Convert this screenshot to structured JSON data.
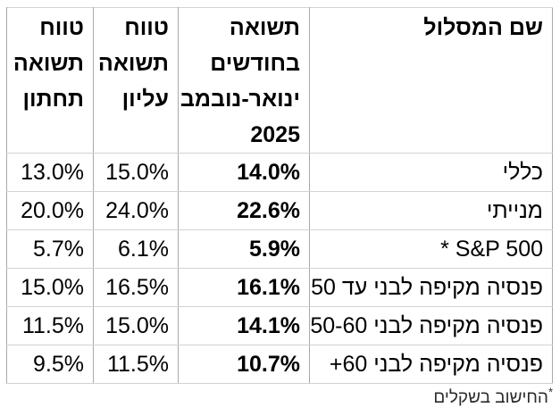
{
  "chart_data": {
    "type": "table",
    "direction": "rtl",
    "columns": [
      "שם המסלול",
      "תשואה בחודשים ינואר-נובמבר 2025",
      "טווח תשואה עליון",
      "טווח תשואה תחתון"
    ],
    "rows": [
      [
        "כללי",
        "14.0%",
        "15.0%",
        "13.0%"
      ],
      [
        "מנייתי",
        "22.6%",
        "24.0%",
        "20.0%"
      ],
      [
        "S&P 500 *",
        "5.9%",
        "6.1%",
        "5.7%"
      ],
      [
        "פנסיה מקיפה לבני עד 50",
        "16.1%",
        "16.5%",
        "15.0%"
      ],
      [
        "פנסיה מקיפה לבני 50-60",
        "14.1%",
        "15.0%",
        "11.5%"
      ],
      [
        "פנסיה מקיפה לבני 60+",
        "10.7%",
        "11.5%",
        "9.5%"
      ]
    ],
    "footnote": "*החישוב בשקלים",
    "emphasis": "עמודת התשואה בחודשים ינואר-נובמבר 2025 מודגשת"
  },
  "table": {
    "headers": {
      "name": "שם המסלול",
      "return": "תשואה\nבחודשים\nינואר-נובמבר\n2025",
      "upper": "טווח\nתשואה\nעליון",
      "lower": "טווח\nתשואה\nתחתון"
    }
  },
  "footnote": {
    "marker": "*",
    "text": "החישוב בשקלים"
  }
}
